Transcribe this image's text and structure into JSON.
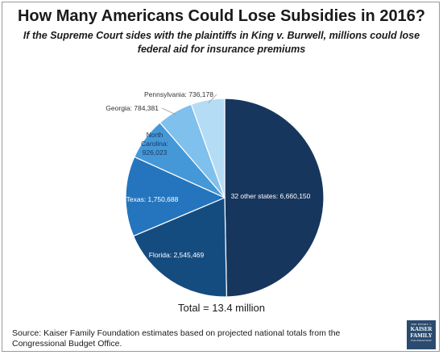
{
  "header": {
    "title": "How Many Americans Could Lose Subsidies in 2016?",
    "subtitle": "If the Supreme Court sides with the plaintiffs in King v. Burwell, millions could lose federal aid for insurance premiums"
  },
  "chart_data": {
    "type": "pie",
    "title": "How Many Americans Could Lose Subsidies in 2016?",
    "slices": [
      {
        "label": "32 other states: 6,660,150",
        "value": 6660150,
        "color": "#17365d",
        "text_color": "#ffffff"
      },
      {
        "label": "Florida: 2,545,469",
        "value": 2545469,
        "color": "#154c80",
        "text_color": "#ffffff"
      },
      {
        "label": "Texas: 1,750,688",
        "value": 1750688,
        "color": "#2475bd",
        "text_color": "#ffffff"
      },
      {
        "label": "North Carolina: 926,023",
        "value": 926023,
        "color": "#4598d7",
        "text_color": "#17365d"
      },
      {
        "label": "Georgia: 784,381",
        "value": 784381,
        "color": "#7fc0ec",
        "text_color": "#17365d"
      },
      {
        "label": "Pennsylvania: 736,178",
        "value": 736178,
        "color": "#b5dcf5",
        "text_color": "#17365d"
      }
    ],
    "total_label": "Total = 13.4 million"
  },
  "footer": {
    "source": "Source: Kaiser Family Foundation estimates based on projected national totals from the Congressional Budget Office.",
    "logo_top": "THE HENRY J.",
    "logo_line1": "KAISER",
    "logo_line2": "FAMILY",
    "logo_bottom": "FOUNDATION"
  }
}
